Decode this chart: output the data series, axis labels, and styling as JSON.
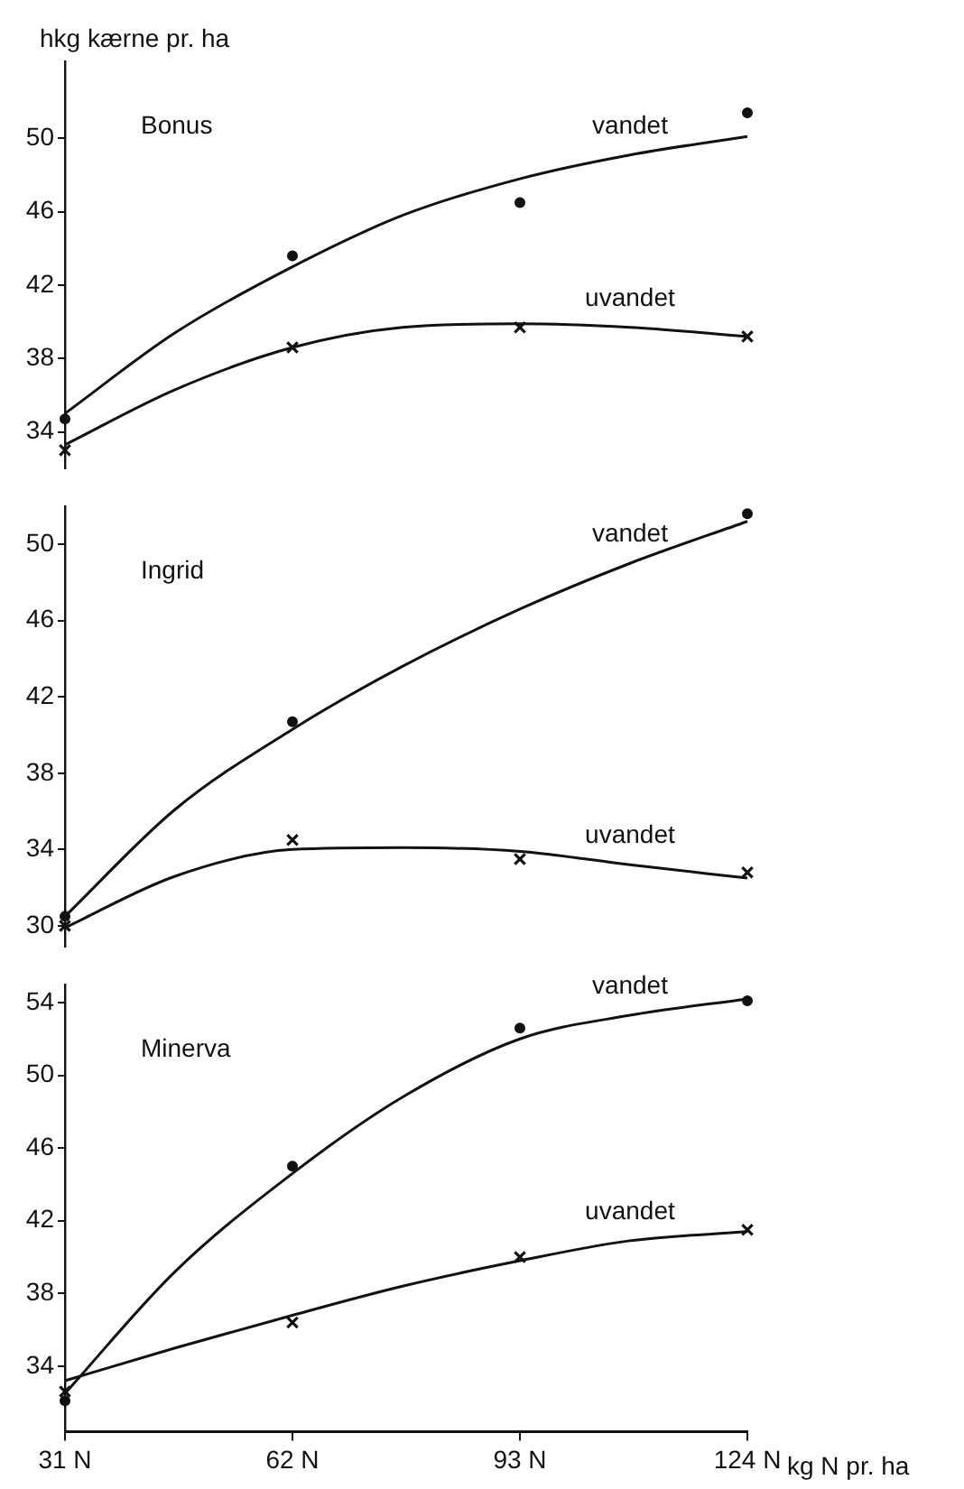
{
  "chart_data": [
    {
      "type": "scatter",
      "title": "Bonus",
      "ylabel": "hkg kærne pr. ha",
      "xlim": [
        31,
        124
      ],
      "ylim": [
        32,
        54.2
      ],
      "yticks": [
        34,
        38,
        42,
        46,
        50
      ],
      "tick_labels": "y",
      "grid": false,
      "legend": false,
      "series": [
        {
          "name": "vandet",
          "type": "line",
          "marker": "none",
          "color": "#111111",
          "x": [
            31,
            46,
            62,
            77,
            93,
            108,
            124
          ],
          "values": [
            35.0,
            39.4,
            43.0,
            45.8,
            47.8,
            49.1,
            50.1
          ]
        },
        {
          "name": "uvandet",
          "type": "line",
          "marker": "none",
          "color": "#111111",
          "x": [
            31,
            46,
            62,
            77,
            93,
            108,
            124
          ],
          "values": [
            33.3,
            36.3,
            38.6,
            39.7,
            39.9,
            39.7,
            39.2
          ]
        },
        {
          "marker": "circle",
          "color": "#111111",
          "x": [
            31,
            62,
            93,
            124
          ],
          "values": [
            34.7,
            43.6,
            46.5,
            51.4
          ]
        },
        {
          "marker": "cross",
          "color": "#111111",
          "x": [
            31,
            62,
            93,
            124
          ],
          "values": [
            33.0,
            38.6,
            39.7,
            39.2
          ]
        }
      ]
    },
    {
      "type": "scatter",
      "title": "Ingrid",
      "xlim": [
        31,
        124
      ],
      "ylim": [
        28.9,
        52
      ],
      "yticks": [
        30,
        34,
        38,
        42,
        46,
        50
      ],
      "tick_labels": "y",
      "grid": false,
      "legend": false,
      "series": [
        {
          "name": "vandet",
          "type": "line",
          "marker": "none",
          "color": "#111111",
          "x": [
            31,
            46,
            62,
            77,
            93,
            108,
            124
          ],
          "values": [
            30.5,
            36.1,
            40.3,
            43.6,
            46.6,
            49.0,
            51.2
          ]
        },
        {
          "name": "uvandet",
          "type": "line",
          "marker": "none",
          "color": "#111111",
          "x": [
            31,
            46,
            62,
            77,
            93,
            108,
            124
          ],
          "values": [
            29.9,
            32.6,
            34.0,
            34.1,
            33.9,
            33.2,
            32.5
          ]
        },
        {
          "marker": "circle",
          "color": "#111111",
          "x": [
            31,
            62,
            124
          ],
          "values": [
            30.5,
            40.7,
            51.6
          ]
        },
        {
          "marker": "cross",
          "color": "#111111",
          "x": [
            31,
            62,
            93,
            124
          ],
          "values": [
            30.0,
            34.5,
            33.5,
            32.8
          ]
        }
      ]
    },
    {
      "type": "scatter",
      "title": "Minerva",
      "xlabel": "kg N pr. ha",
      "xlim": [
        31,
        124
      ],
      "ylim": [
        30.4,
        55
      ],
      "xticks": [
        {
          "value": 31,
          "label": "31 N"
        },
        {
          "value": 62,
          "label": "62 N"
        },
        {
          "value": 93,
          "label": "93 N"
        },
        {
          "value": 124,
          "label": "124 N"
        }
      ],
      "yticks": [
        34,
        38,
        42,
        46,
        50,
        54
      ],
      "grid": false,
      "legend": false,
      "series": [
        {
          "name": "vandet",
          "type": "line",
          "marker": "none",
          "color": "#111111",
          "x": [
            31,
            46,
            62,
            77,
            93,
            108,
            124
          ],
          "values": [
            32.5,
            39.2,
            44.6,
            48.8,
            52.0,
            53.3,
            54.2
          ]
        },
        {
          "name": "uvandet",
          "type": "line",
          "marker": "none",
          "color": "#111111",
          "x": [
            31,
            46,
            62,
            77,
            93,
            108,
            124
          ],
          "values": [
            33.2,
            35.0,
            36.8,
            38.4,
            39.8,
            40.9,
            41.4
          ]
        },
        {
          "marker": "circle",
          "color": "#111111",
          "x": [
            31,
            62,
            93,
            124
          ],
          "values": [
            32.1,
            45.0,
            52.6,
            54.1
          ]
        },
        {
          "marker": "cross",
          "color": "#111111",
          "x": [
            31,
            62,
            93,
            124
          ],
          "values": [
            32.6,
            36.4,
            40.0,
            41.5
          ]
        }
      ]
    }
  ]
}
